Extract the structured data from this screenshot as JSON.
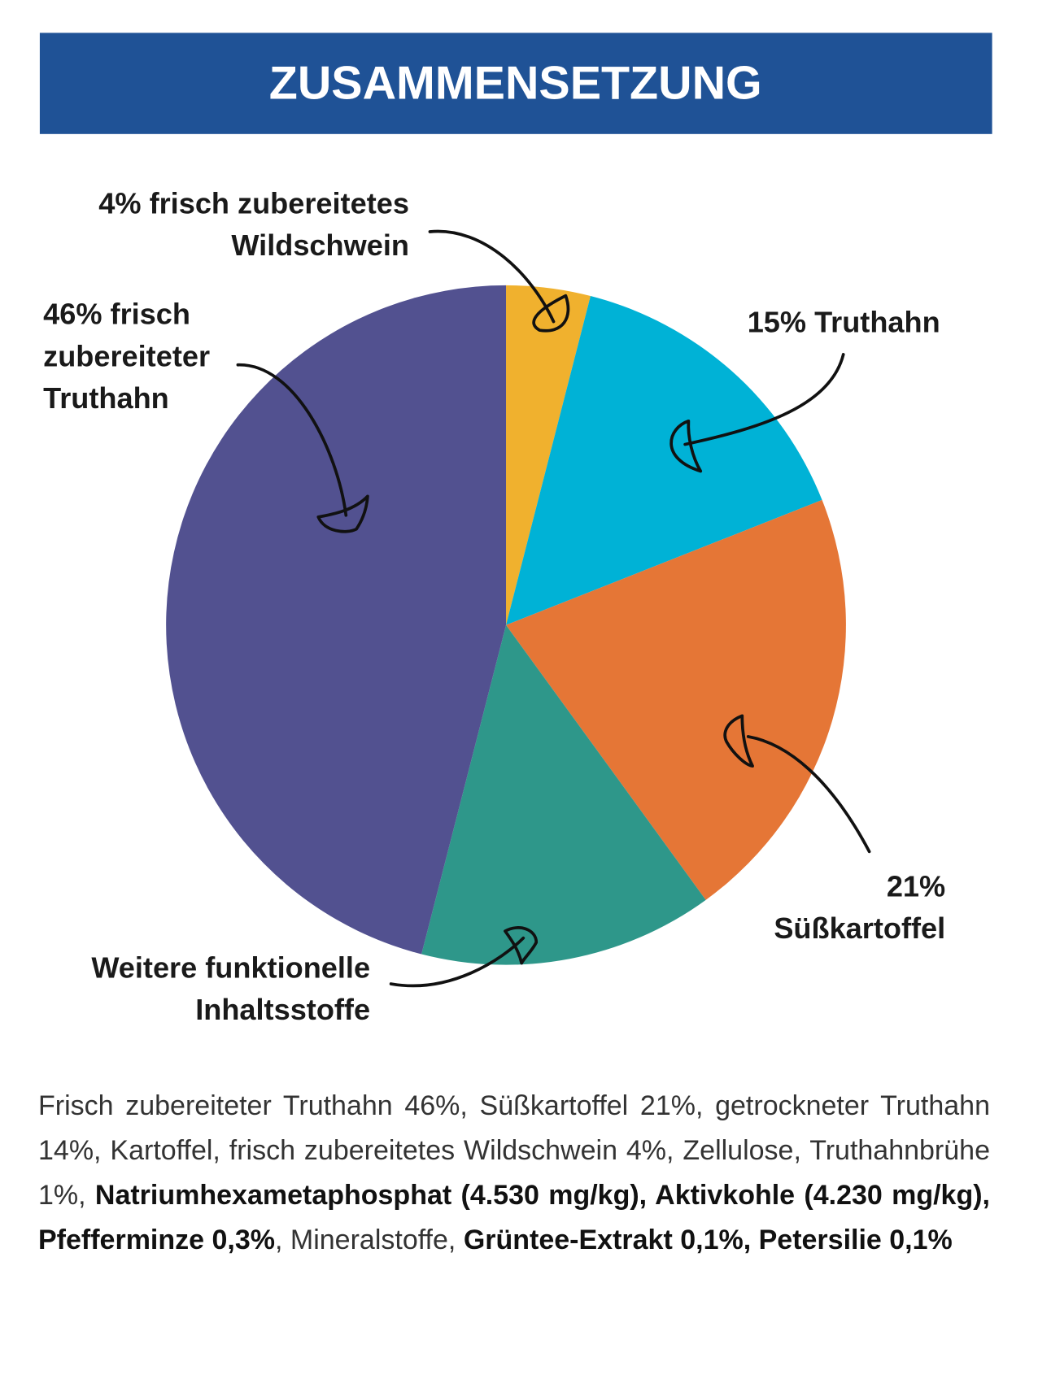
{
  "header": {
    "title": "ZUSAMMENSETZUNG"
  },
  "chart_data": {
    "type": "pie",
    "labels": [
      [
        "4% frisch zubereitetes",
        "Wildschwein"
      ],
      [
        "15% Truthahn"
      ],
      [
        "21%",
        "Süßkartoffel"
      ],
      [
        "Weitere funktionelle",
        "Inhaltsstoffe"
      ],
      [
        "46% frisch",
        "zubereiteter",
        "Truthahn"
      ]
    ],
    "values": [
      4,
      15,
      21,
      14,
      46
    ],
    "colors": [
      "#f0b12e",
      "#00b2d6",
      "#e57636",
      "#2e978a",
      "#525190"
    ]
  },
  "paragraph": {
    "segments": [
      {
        "text": "Frisch zubereiteter Truthahn 46%, Süßkartoffel 21%, getrockneter Truthahn 14%, Kartoffel, frisch zubereitetes Wildschwein 4%, Zellulose, Truthahnbrühe 1%, ",
        "bold": false
      },
      {
        "text": "Natriumhexametaphosphat (4.530 mg/kg), Aktivkohle (4.230 mg/kg), Pfefferminze 0,3%",
        "bold": true
      },
      {
        "text": ", Mineralstoffe, ",
        "bold": false
      },
      {
        "text": "Grüntee-Extrakt 0,1%, Petersilie 0,1%",
        "bold": true
      }
    ]
  }
}
